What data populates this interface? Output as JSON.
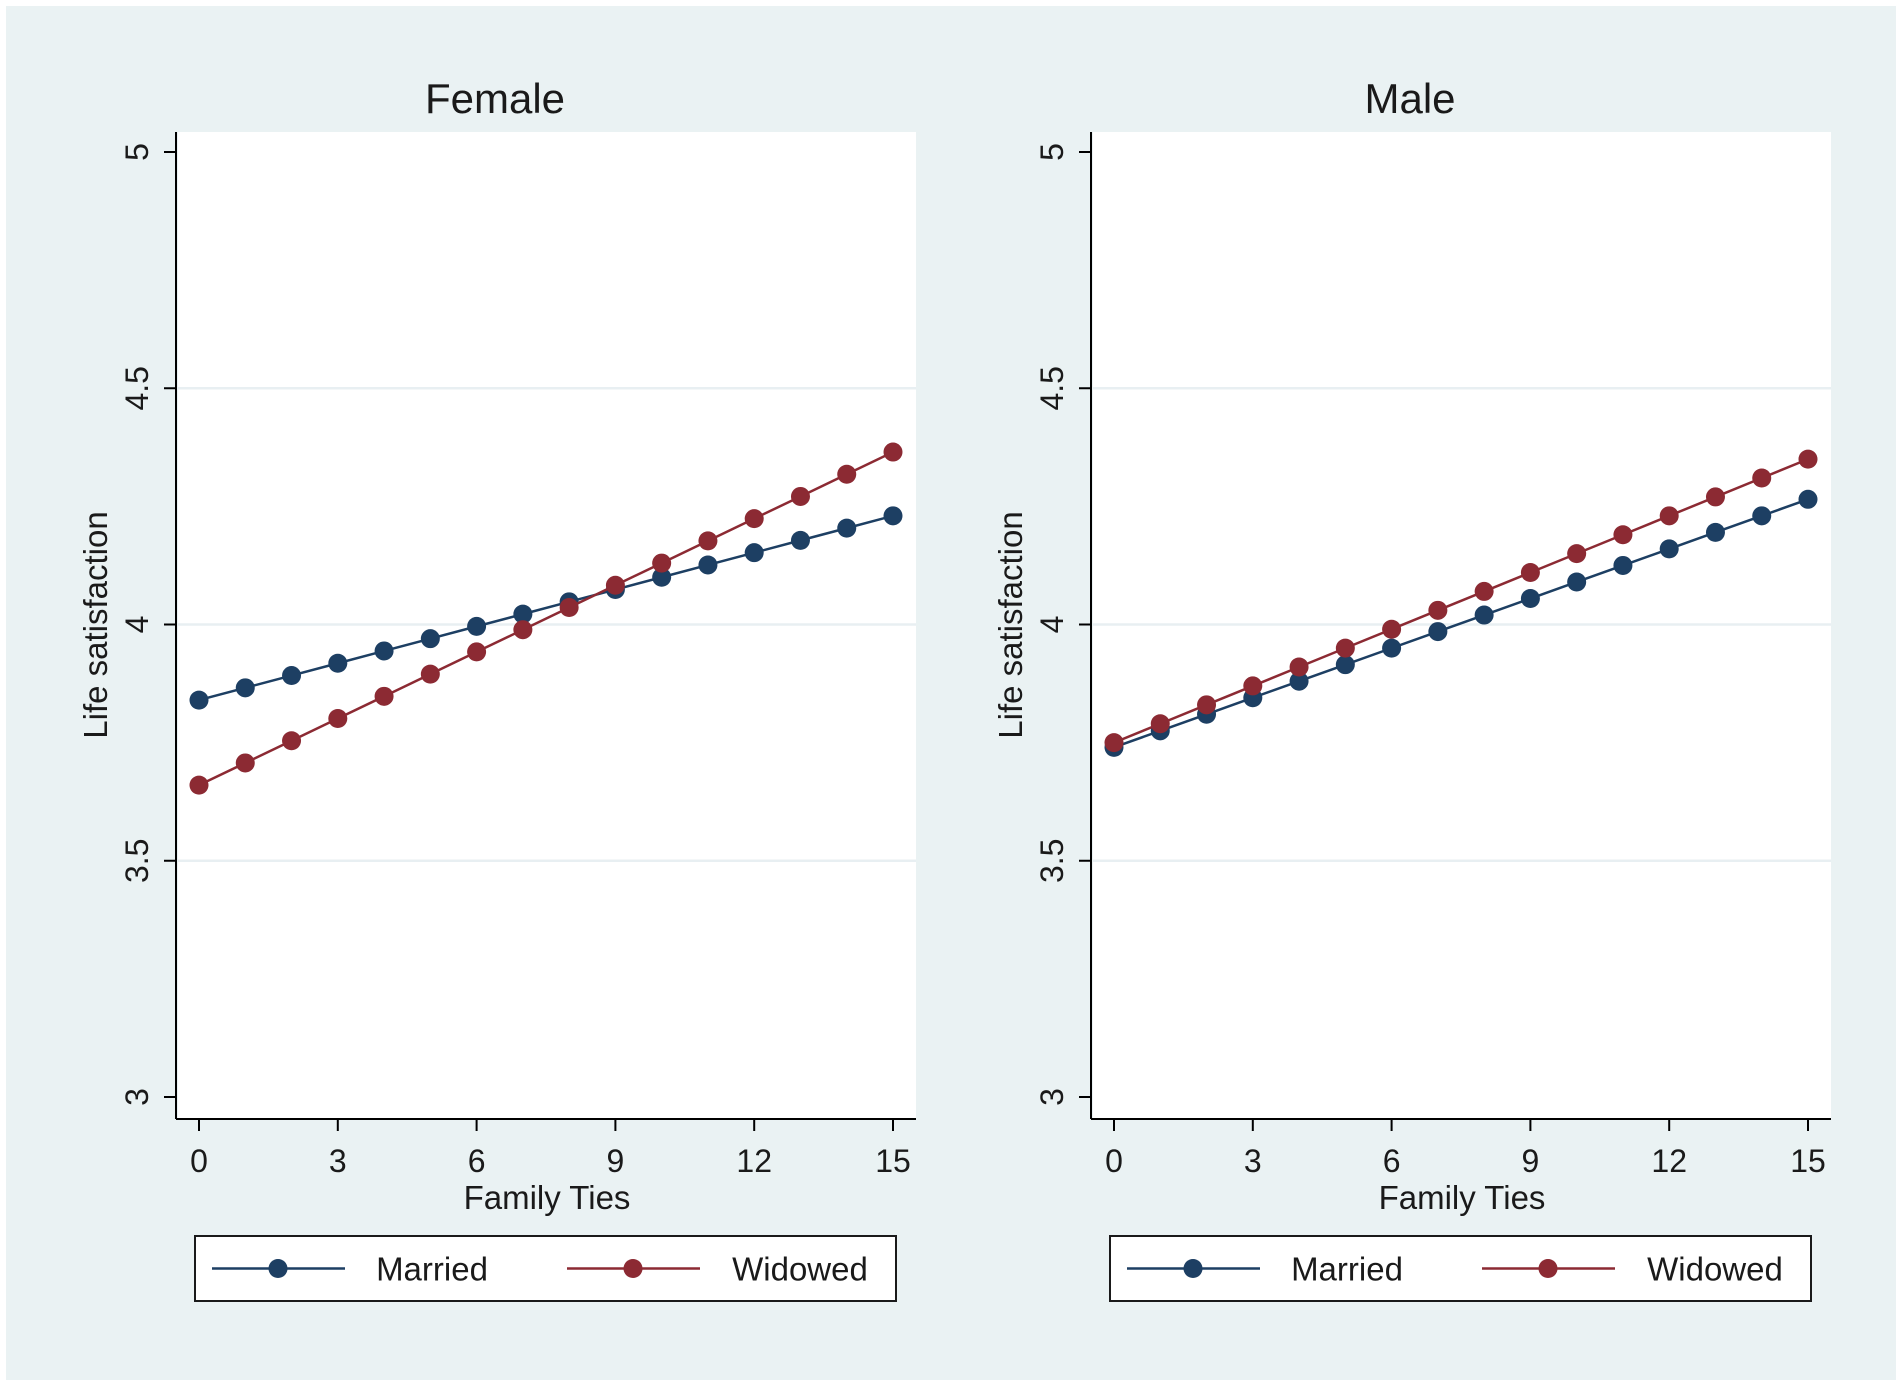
{
  "chart_data": [
    {
      "type": "line",
      "title": "Female",
      "xlabel": "Family Ties",
      "ylabel": "Life satisfaction",
      "xlim": [
        0,
        15
      ],
      "ylim": [
        3,
        5
      ],
      "xticks": [
        "0",
        "3",
        "6",
        "9",
        "12",
        "15"
      ],
      "yticks": [
        "3",
        "3.5",
        "4",
        "4.5",
        "5"
      ],
      "grid": true,
      "legend_position": "bottom",
      "x": [
        0,
        1,
        2,
        3,
        4,
        5,
        6,
        7,
        8,
        9,
        10,
        11,
        12,
        13,
        14,
        15
      ],
      "series": [
        {
          "name": "Married",
          "color": "#1d3f63",
          "values": [
            3.84,
            3.866,
            3.892,
            3.918,
            3.944,
            3.97,
            3.996,
            4.022,
            4.048,
            4.074,
            4.1,
            4.126,
            4.152,
            4.178,
            4.204,
            4.23
          ]
        },
        {
          "name": "Widowed",
          "color": "#8c2a33",
          "values": [
            3.66,
            3.707,
            3.754,
            3.801,
            3.848,
            3.895,
            3.942,
            3.989,
            4.036,
            4.083,
            4.13,
            4.177,
            4.224,
            4.271,
            4.318,
            4.365
          ]
        }
      ]
    },
    {
      "type": "line",
      "title": "Male",
      "xlabel": "Family Ties",
      "ylabel": "Life satisfaction",
      "xlim": [
        0,
        15
      ],
      "ylim": [
        3,
        5
      ],
      "xticks": [
        "0",
        "3",
        "6",
        "9",
        "12",
        "15"
      ],
      "yticks": [
        "3",
        "3.5",
        "4",
        "4.5",
        "5"
      ],
      "grid": true,
      "legend_position": "bottom",
      "x": [
        0,
        1,
        2,
        3,
        4,
        5,
        6,
        7,
        8,
        9,
        10,
        11,
        12,
        13,
        14,
        15
      ],
      "series": [
        {
          "name": "Married",
          "color": "#1d3f63",
          "values": [
            3.74,
            3.775,
            3.81,
            3.845,
            3.88,
            3.915,
            3.95,
            3.985,
            4.02,
            4.055,
            4.09,
            4.125,
            4.16,
            4.195,
            4.23,
            4.265
          ]
        },
        {
          "name": "Widowed",
          "color": "#8c2a33",
          "values": [
            3.75,
            3.79,
            3.83,
            3.87,
            3.91,
            3.95,
            3.99,
            4.03,
            4.07,
            4.11,
            4.15,
            4.19,
            4.23,
            4.27,
            4.31,
            4.35
          ]
        }
      ]
    }
  ],
  "colors": {
    "outer_background": "#eaf2f3",
    "plot_background": "#ffffff",
    "grid": "#e8eff2",
    "axis": "#000000"
  }
}
